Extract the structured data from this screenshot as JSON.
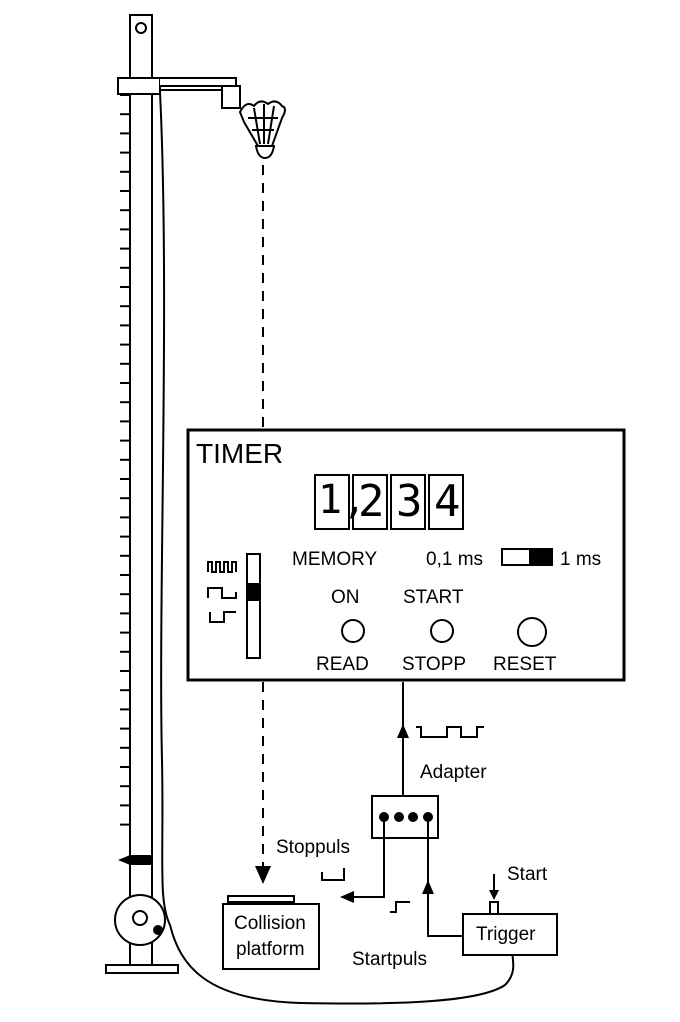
{
  "timer": {
    "title": "TIMER",
    "digits": [
      "1,",
      "2",
      "3",
      "4"
    ],
    "memory_label": "MEMORY",
    "range_low": "0,1 ms",
    "range_high": "1 ms",
    "on_label": "ON",
    "start_label": "START",
    "read_label": "READ",
    "stopp_label": "STOPP",
    "reset_label": "RESET"
  },
  "labels": {
    "adapter": "Adapter",
    "stoppuls": "Stoppuls",
    "startpuls": "Startpuls",
    "start": "Start",
    "collision_line1": "Collision",
    "collision_line2": "platform",
    "trigger": "Trigger"
  }
}
